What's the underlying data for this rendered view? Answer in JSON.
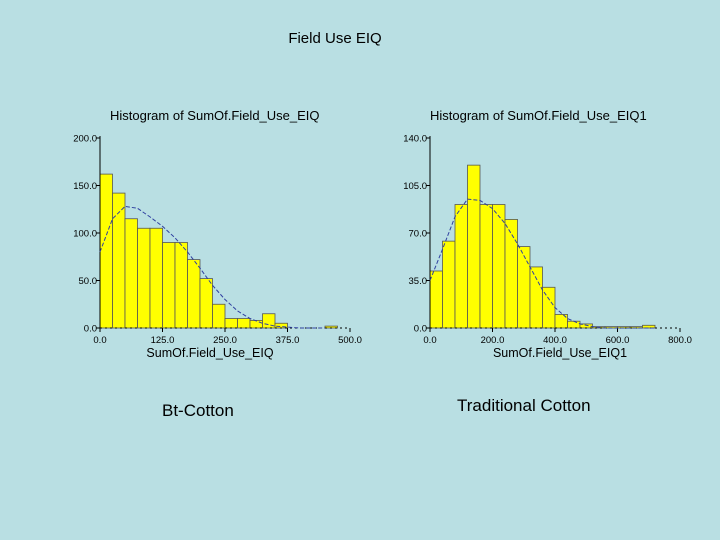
{
  "slide": {
    "title": "Field Use EIQ",
    "caption_left": "Bt-Cotton",
    "caption_right": "Traditional Cotton"
  },
  "colors": {
    "background": "#b9dfe3",
    "bar_fill": "#ffff00",
    "bar_stroke": "#555555",
    "curve": "#3040a0"
  },
  "chart_data": [
    {
      "type": "bar",
      "title": "Histogram of SumOf.Field_Use_EIQ",
      "xlabel": "SumOf.Field_Use_EIQ",
      "ylabel": "",
      "xlim": [
        0,
        500
      ],
      "ylim": [
        0,
        200
      ],
      "xticks": [
        "0.0",
        "125.0",
        "250.0",
        "375.0",
        "500.0"
      ],
      "xtick_values": [
        0,
        125,
        250,
        375,
        500
      ],
      "yticks": [
        "0.0",
        "50.0",
        "100.0",
        "150.0",
        "200.0"
      ],
      "ytick_values": [
        0,
        50,
        100,
        150,
        200
      ],
      "bin_width": 25,
      "bins": [
        {
          "x0": 0,
          "x1": 25,
          "value": 162
        },
        {
          "x0": 25,
          "x1": 50,
          "value": 142
        },
        {
          "x0": 50,
          "x1": 75,
          "value": 115
        },
        {
          "x0": 75,
          "x1": 100,
          "value": 105
        },
        {
          "x0": 100,
          "x1": 125,
          "value": 105
        },
        {
          "x0": 125,
          "x1": 150,
          "value": 90
        },
        {
          "x0": 150,
          "x1": 175,
          "value": 90
        },
        {
          "x0": 175,
          "x1": 200,
          "value": 72
        },
        {
          "x0": 200,
          "x1": 225,
          "value": 52
        },
        {
          "x0": 225,
          "x1": 250,
          "value": 25
        },
        {
          "x0": 250,
          "x1": 275,
          "value": 10
        },
        {
          "x0": 275,
          "x1": 300,
          "value": 10
        },
        {
          "x0": 300,
          "x1": 325,
          "value": 8
        },
        {
          "x0": 325,
          "x1": 350,
          "value": 15
        },
        {
          "x0": 350,
          "x1": 375,
          "value": 5
        },
        {
          "x0": 375,
          "x1": 400,
          "value": 0
        },
        {
          "x0": 400,
          "x1": 425,
          "value": 0
        },
        {
          "x0": 425,
          "x1": 450,
          "value": 0
        },
        {
          "x0": 450,
          "x1": 475,
          "value": 2
        }
      ],
      "fit_curve": {
        "x": [
          0,
          25,
          50,
          75,
          100,
          125,
          150,
          175,
          200,
          225,
          250,
          275,
          300,
          325,
          350,
          375,
          400,
          425,
          450
        ],
        "y": [
          80,
          115,
          128,
          126,
          117,
          107,
          95,
          80,
          63,
          45,
          30,
          18,
          10,
          5,
          2,
          1,
          0,
          0,
          0
        ]
      }
    },
    {
      "type": "bar",
      "title": "Histogram of SumOf.Field_Use_EIQ1",
      "xlabel": "SumOf.Field_Use_EIQ1",
      "ylabel": "",
      "xlim": [
        0,
        800
      ],
      "ylim": [
        0,
        140
      ],
      "xticks": [
        "0.0",
        "200.0",
        "400.0",
        "600.0",
        "800.0"
      ],
      "xtick_values": [
        0,
        200,
        400,
        600,
        800
      ],
      "yticks": [
        "0.0",
        "35.0",
        "70.0",
        "105.0",
        "140.0"
      ],
      "ytick_values": [
        0,
        35,
        70,
        105,
        140
      ],
      "bin_width": 40,
      "bins": [
        {
          "x0": 0,
          "x1": 40,
          "value": 42
        },
        {
          "x0": 40,
          "x1": 80,
          "value": 64
        },
        {
          "x0": 80,
          "x1": 120,
          "value": 91
        },
        {
          "x0": 120,
          "x1": 160,
          "value": 120
        },
        {
          "x0": 160,
          "x1": 200,
          "value": 91
        },
        {
          "x0": 200,
          "x1": 240,
          "value": 91
        },
        {
          "x0": 240,
          "x1": 280,
          "value": 80
        },
        {
          "x0": 280,
          "x1": 320,
          "value": 60
        },
        {
          "x0": 320,
          "x1": 360,
          "value": 45
        },
        {
          "x0": 360,
          "x1": 400,
          "value": 30
        },
        {
          "x0": 400,
          "x1": 440,
          "value": 10
        },
        {
          "x0": 440,
          "x1": 480,
          "value": 5
        },
        {
          "x0": 480,
          "x1": 520,
          "value": 3
        },
        {
          "x0": 520,
          "x1": 560,
          "value": 1
        },
        {
          "x0": 560,
          "x1": 600,
          "value": 1
        },
        {
          "x0": 600,
          "x1": 640,
          "value": 1
        },
        {
          "x0": 640,
          "x1": 680,
          "value": 1
        },
        {
          "x0": 680,
          "x1": 720,
          "value": 2
        }
      ],
      "fit_curve": {
        "x": [
          0,
          40,
          80,
          120,
          160,
          200,
          240,
          280,
          320,
          360,
          400,
          440,
          480,
          520,
          560,
          600,
          640,
          680,
          720
        ],
        "y": [
          35,
          58,
          82,
          95,
          94,
          88,
          77,
          62,
          45,
          28,
          15,
          7,
          3,
          1,
          0,
          0,
          0,
          0,
          0
        ]
      }
    }
  ]
}
